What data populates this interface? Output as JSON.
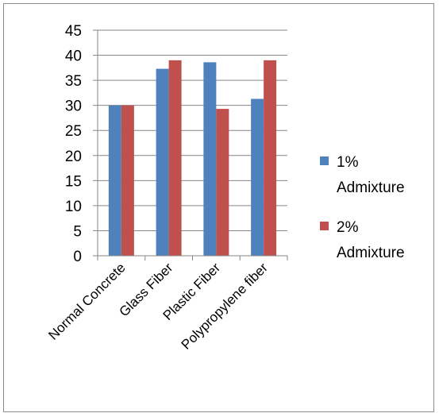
{
  "chart_data": {
    "type": "bar",
    "categories": [
      "Normal Concrete",
      "Glass Fiber",
      "Plastic Fiber",
      "Polypropylene fiber"
    ],
    "series": [
      {
        "name": "1% Admixture",
        "color": "#4F81BD",
        "values": [
          30,
          37.3,
          38.6,
          31.3
        ]
      },
      {
        "name": "2% Admixture",
        "color": "#C0504D",
        "values": [
          30,
          39,
          29.3,
          39
        ]
      }
    ],
    "ylim": [
      0,
      45
    ],
    "yticks": [
      0,
      5,
      10,
      15,
      20,
      25,
      30,
      35,
      40,
      45
    ],
    "grid": true,
    "legend": "right",
    "legend_lines": [
      [
        "1%",
        "Admixture"
      ],
      [
        "2%",
        "Admixture"
      ]
    ]
  }
}
